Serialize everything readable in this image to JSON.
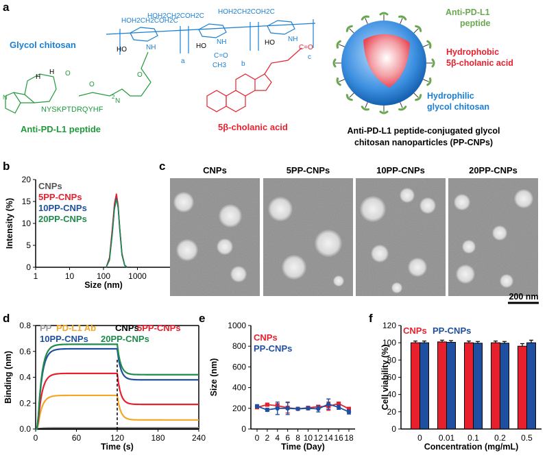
{
  "panels": {
    "a": "a",
    "b": "b",
    "c": "c",
    "d": "d",
    "e": "e",
    "f": "f"
  },
  "schematic": {
    "glycol_chitosan": "Glycol chitosan",
    "anti_pdl1_peptide": "Anti-PD-L1 peptide",
    "cholanic": "5β-cholanic acid",
    "peptide_seq": "NYSKPTDRQYHF",
    "sugar_groups": [
      "HOH2CH2COH2C",
      "HOH2CH2COH2C",
      "HOH2CH2COH2C"
    ],
    "sub_a": "a",
    "sub_b": "b",
    "sub_c": "c",
    "sub_2": "2",
    "np_caption_line1": "Anti-PD-L1 peptide-conjugated glycol",
    "np_caption_line2": "chitosan nanoparticles (PP-CNPs)",
    "np_label_peptide_1": "Anti-PD-L1",
    "np_label_peptide_2": "peptide",
    "np_label_hydrophobic_1": "Hydrophobic",
    "np_label_hydrophobic_2": "5β-cholanic acid",
    "np_label_hydrophilic_1": "Hydrophilic",
    "np_label_hydrophilic_2": "glycol chitosan"
  },
  "colors": {
    "cnps": "#555555",
    "5pp": "#e8202e",
    "10pp": "#1f4fa0",
    "20pp": "#1e8a4c",
    "pp": "#9a9a9a",
    "pdl1ab": "#f5a623",
    "black": "#000000",
    "chitosan_blue": "#1a7fd4",
    "peptide_green": "#1e9a3a",
    "cholanic_red": "#e8202e"
  },
  "micrograph": {
    "titles": [
      "CNPs",
      "5PP-CNPs",
      "10PP-CNPs",
      "20PP-CNPs"
    ],
    "scale_bar": "200 nm"
  },
  "chart_data": [
    {
      "id": "b",
      "type": "line",
      "xlabel": "Size (nm)",
      "ylabel": "Intensity (%)",
      "xscale": "log",
      "xlim": [
        1,
        10000
      ],
      "ylim": [
        0,
        20
      ],
      "xticks": [
        "1",
        "10",
        "100",
        "1000"
      ],
      "yticks": [
        "0",
        "5",
        "10",
        "15",
        "20"
      ],
      "legend": [
        "CNPs",
        "5PP-CNPs",
        "10PP-CNPs",
        "20PP-CNPs"
      ],
      "series": [
        {
          "name": "CNPs",
          "x": [
            120,
            150,
            180,
            210,
            240,
            270,
            300,
            350,
            420,
            500
          ],
          "y": [
            0,
            2,
            8,
            14,
            16.3,
            14,
            9,
            3,
            0.5,
            0
          ]
        },
        {
          "name": "5PP-CNPs",
          "x": [
            120,
            150,
            180,
            210,
            240,
            270,
            300,
            350,
            420,
            500
          ],
          "y": [
            0,
            2.2,
            8.5,
            14.5,
            16.8,
            14.2,
            9.2,
            3.2,
            0.5,
            0
          ]
        },
        {
          "name": "10PP-CNPs",
          "x": [
            120,
            150,
            180,
            210,
            240,
            270,
            300,
            350,
            420,
            500
          ],
          "y": [
            0,
            1.8,
            7.5,
            13.5,
            15.8,
            13.5,
            8.6,
            2.8,
            0.4,
            0
          ]
        },
        {
          "name": "20PP-CNPs",
          "x": [
            120,
            150,
            180,
            210,
            240,
            270,
            300,
            350,
            420,
            500
          ],
          "y": [
            0,
            1.6,
            7.2,
            13.2,
            15.5,
            13.8,
            9,
            3,
            0.5,
            0
          ]
        }
      ]
    },
    {
      "id": "d",
      "type": "line",
      "xlabel": "Time (s)",
      "ylabel": "Binding (nm)",
      "xlim": [
        0,
        240
      ],
      "ylim": [
        0,
        0.8
      ],
      "xticks": [
        "0",
        "60",
        "120",
        "180",
        "240"
      ],
      "yticks": [
        "0.0",
        "0.2",
        "0.4",
        "0.6",
        "0.8"
      ],
      "legend_row1": [
        "PP",
        "PD-L1 Ab",
        "CNPs",
        "5PP-CNPs"
      ],
      "legend_row2": [
        "10PP-CNPs",
        "20PP-CNPs"
      ],
      "switch_time": 120,
      "series": [
        {
          "name": "PP",
          "plateau": 0.01,
          "dissoc": 0.01
        },
        {
          "name": "PD-L1 Ab",
          "plateau": 0.26,
          "dissoc": 0.07
        },
        {
          "name": "CNPs",
          "plateau": 0.0,
          "dissoc": 0.0
        },
        {
          "name": "5PP-CNPs",
          "plateau": 0.43,
          "dissoc": 0.19
        },
        {
          "name": "10PP-CNPs",
          "plateau": 0.62,
          "dissoc": 0.38
        },
        {
          "name": "20PP-CNPs",
          "plateau": 0.655,
          "dissoc": 0.42
        }
      ]
    },
    {
      "id": "e",
      "type": "line",
      "xlabel": "Time (Day)",
      "ylabel": "Size (nm)",
      "xlim": [
        0,
        18
      ],
      "ylim": [
        0,
        1000
      ],
      "xticks": [
        "0",
        "2",
        "4",
        "6",
        "8",
        "10",
        "12",
        "14",
        "16",
        "18"
      ],
      "yticks": [
        "0",
        "200",
        "400",
        "600",
        "800",
        "1000"
      ],
      "legend": [
        "CNPs",
        "PP-CNPs"
      ],
      "series": [
        {
          "name": "CNPs",
          "x": [
            0,
            2,
            4,
            6,
            8,
            10,
            12,
            14,
            16,
            18
          ],
          "y": [
            210,
            235,
            225,
            205,
            195,
            205,
            215,
            220,
            245,
            195
          ],
          "err": [
            10,
            10,
            20,
            50,
            10,
            10,
            15,
            40,
            15,
            10
          ]
        },
        {
          "name": "PP-CNPs",
          "x": [
            0,
            2,
            4,
            6,
            8,
            10,
            12,
            14,
            16,
            18
          ],
          "y": [
            220,
            185,
            200,
            200,
            195,
            200,
            195,
            240,
            210,
            165
          ],
          "err": [
            15,
            15,
            60,
            60,
            10,
            15,
            30,
            50,
            20,
            20
          ]
        }
      ]
    },
    {
      "id": "f",
      "type": "bar",
      "xlabel": "Concentration (mg/mL)",
      "ylabel": "Cell viability (%)",
      "categories": [
        "0",
        "0.01",
        "0.1",
        "0.2",
        "0.5"
      ],
      "ylim": [
        0,
        120
      ],
      "yticks": [
        "0",
        "20",
        "40",
        "60",
        "80",
        "100",
        "120"
      ],
      "legend": [
        "CNPs",
        "PP-CNPs"
      ],
      "series": [
        {
          "name": "CNPs",
          "values": [
            100,
            101,
            100,
            100,
            96
          ],
          "err": [
            2,
            2,
            2,
            2,
            3
          ]
        },
        {
          "name": "PP-CNPs",
          "values": [
            100,
            100.5,
            99.5,
            99.5,
            100
          ],
          "err": [
            2,
            2,
            2,
            2,
            3
          ]
        }
      ]
    }
  ]
}
